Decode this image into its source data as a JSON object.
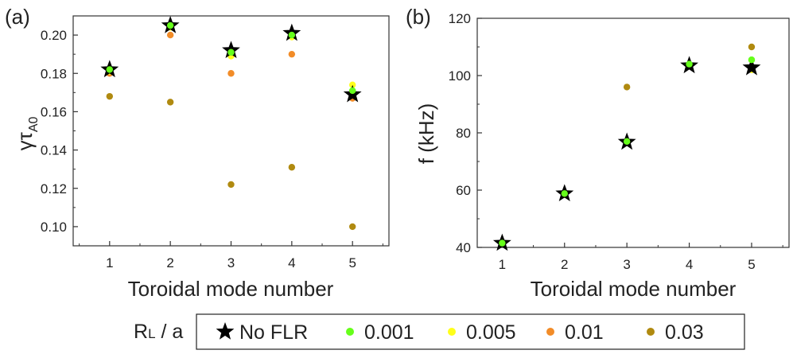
{
  "chart_data": [
    {
      "type": "scatter",
      "panel_label": "(a)",
      "ylabel_main": "γτ",
      "ylabel_sub": "A0",
      "xlabel": "Toroidal mode number",
      "xlim": [
        0.4,
        5.6
      ],
      "ylim": [
        0.09,
        0.21
      ],
      "xticks": [
        "1",
        "2",
        "3",
        "4",
        "5"
      ],
      "yticks": [
        "0.10",
        "0.12",
        "0.14",
        "0.16",
        "0.18",
        "0.20"
      ],
      "x": [
        1,
        2,
        3,
        4,
        5
      ],
      "series": [
        {
          "name": "No FLR",
          "values": [
            0.182,
            0.205,
            0.192,
            0.201,
            0.169
          ]
        },
        {
          "name": "0.001",
          "values": [
            0.182,
            0.205,
            0.191,
            0.2,
            0.171
          ]
        },
        {
          "name": "0.005",
          "values": [
            0.181,
            0.204,
            0.189,
            0.199,
            0.174
          ]
        },
        {
          "name": "0.01",
          "values": [
            0.18,
            0.2,
            0.18,
            0.19,
            0.167
          ]
        },
        {
          "name": "0.03",
          "values": [
            0.168,
            0.165,
            0.122,
            0.131,
            0.1
          ]
        }
      ]
    },
    {
      "type": "scatter",
      "panel_label": "(b)",
      "ylabel": "f (kHz)",
      "xlabel": "Toroidal mode number",
      "xlim": [
        0.6,
        5.6
      ],
      "ylim": [
        40,
        120
      ],
      "xticks": [
        "1",
        "2",
        "3",
        "4",
        "5"
      ],
      "yticks": [
        "40",
        "60",
        "80",
        "100",
        "120"
      ],
      "x": [
        1,
        2,
        3,
        4,
        5
      ],
      "series": [
        {
          "name": "No FLR",
          "values": [
            41.5,
            58.8,
            76.8,
            103.5,
            102.8
          ]
        },
        {
          "name": "0.001",
          "values": [
            41.5,
            58.8,
            77.0,
            104.0,
            105.5
          ]
        },
        {
          "name": "0.005",
          "values": [
            41.3,
            58.6,
            76.8,
            103.5,
            102.0
          ]
        },
        {
          "name": "0.01",
          "values": [
            41.3,
            58.6,
            76.8,
            103.5,
            102.5
          ]
        },
        {
          "name": "0.03",
          "values": [
            41.2,
            58.4,
            96.0,
            103.8,
            110.0
          ]
        }
      ]
    }
  ],
  "legend": {
    "title_main": "R",
    "title_sub": "L",
    "title_tail": " / a",
    "entries": [
      {
        "name": "No FLR",
        "marker": "star",
        "color": "#000000"
      },
      {
        "name": "0.001",
        "marker": "circle",
        "color": "#66ff1a"
      },
      {
        "name": "0.005",
        "marker": "circle",
        "color": "#ffff1a"
      },
      {
        "name": "0.01",
        "marker": "circle",
        "color": "#f28c28"
      },
      {
        "name": "0.03",
        "marker": "circle",
        "color": "#b08a10"
      }
    ]
  },
  "colors": {
    "No FLR": "#000000",
    "0.001": "#66ff1a",
    "0.005": "#ffff1a",
    "0.01": "#f28c28",
    "0.03": "#b08a10"
  }
}
